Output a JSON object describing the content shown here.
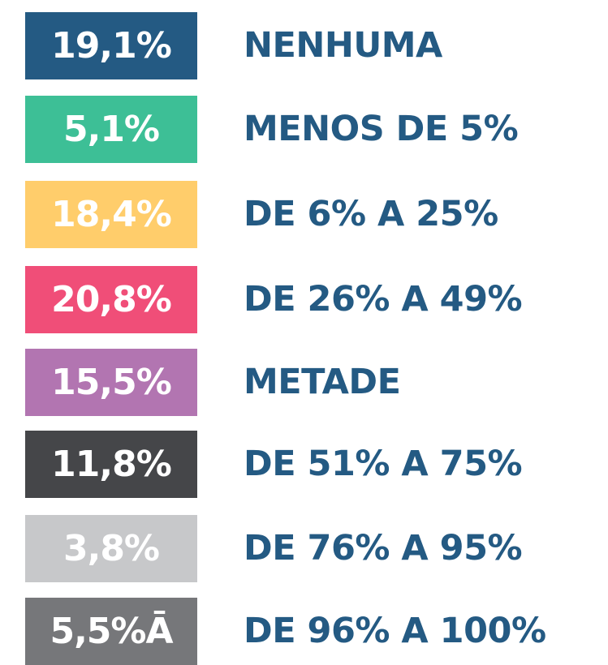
{
  "items": [
    {
      "value": "19,1%",
      "label": "NENHUMA",
      "color": "#245a83"
    },
    {
      "value": "5,1%",
      "label": "MENOS DE 5%",
      "color": "#3dbf96"
    },
    {
      "value": "18,4%",
      "label": "DE 6% A 25%",
      "color": "#ffcd6b"
    },
    {
      "value": "20,8%",
      "label": "DE 26% A 49%",
      "color": "#f04e78"
    },
    {
      "value": "15,5%",
      "label": "METADE",
      "color": "#b275b1"
    },
    {
      "value": "11,8%",
      "label": "DE 51% A 75%",
      "color": "#454649"
    },
    {
      "value": "3,8%",
      "label": "DE 76% A 95%",
      "color": "#c7c8ca"
    },
    {
      "value": "5,5%Ā",
      "label": "DE 96% A 100%",
      "color": "#76777a"
    }
  ]
}
